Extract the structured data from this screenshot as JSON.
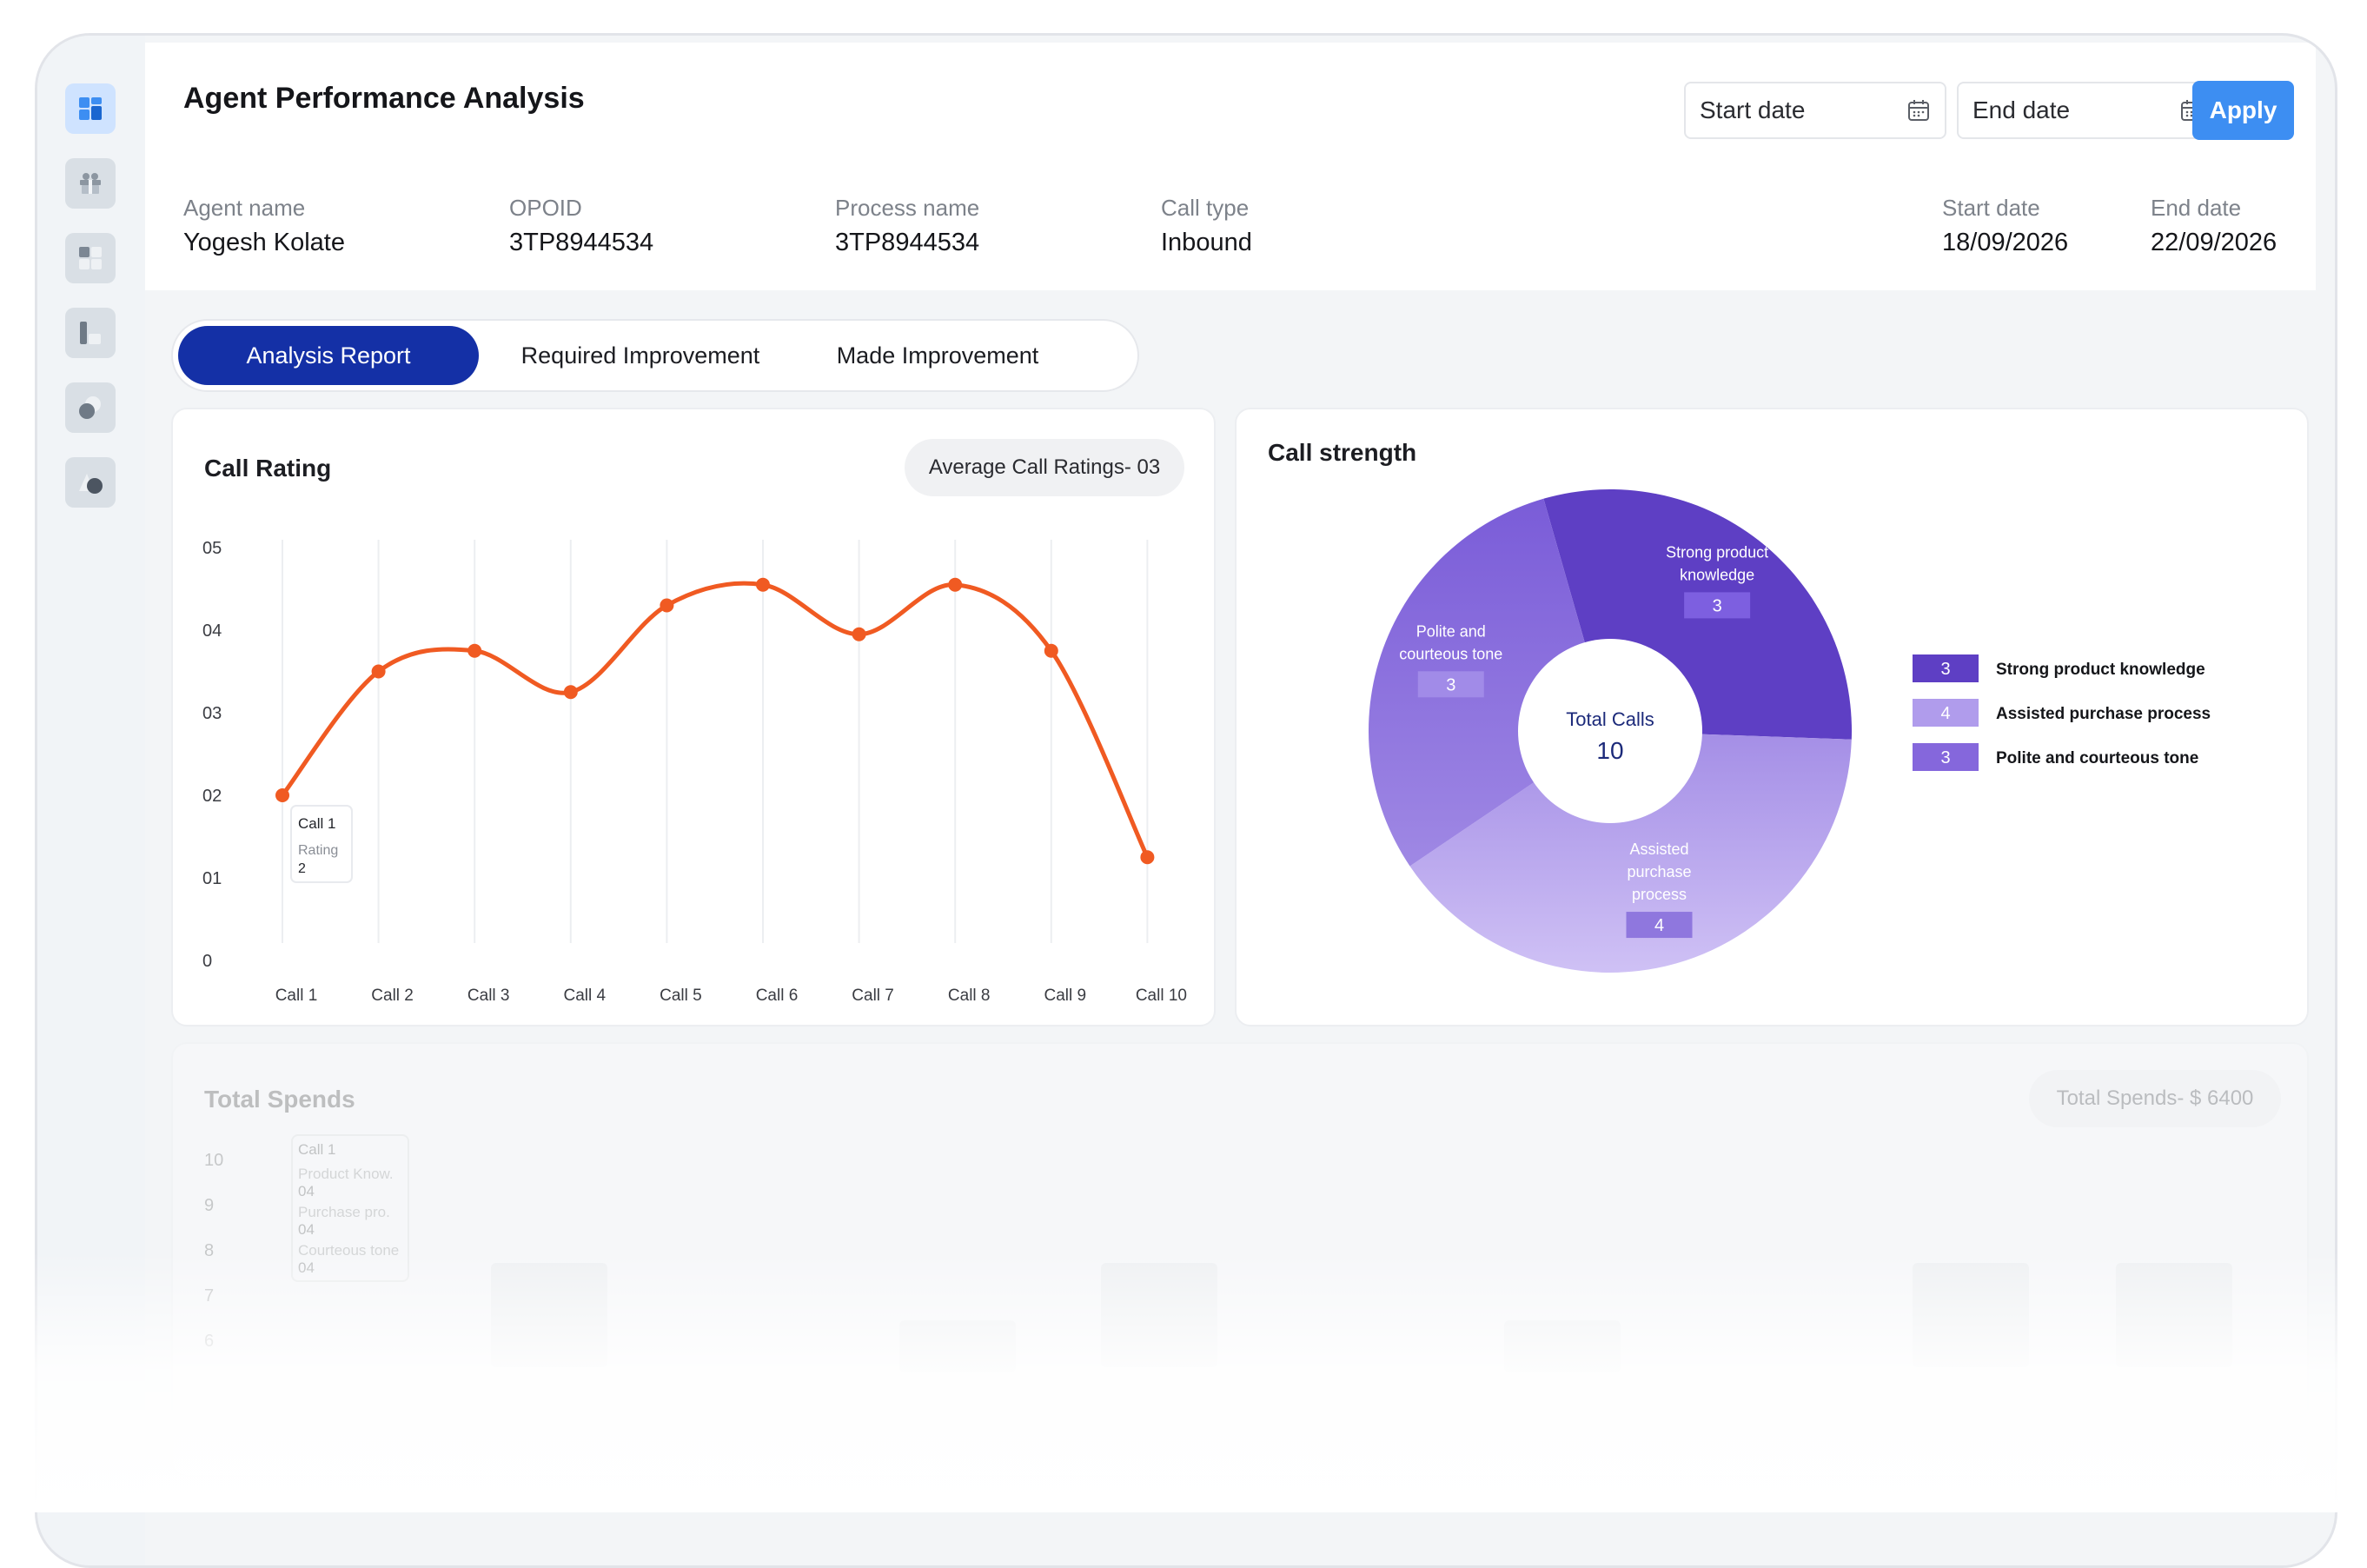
{
  "header": {
    "title": "Agent Performance Analysis",
    "start_date_placeholder": "Start date",
    "end_date_placeholder": "End date",
    "apply_label": "Apply",
    "info": [
      {
        "label": "Agent name",
        "value": "Yogesh Kolate"
      },
      {
        "label": "OPOID",
        "value": "3TP8944534"
      },
      {
        "label": "Process name",
        "value": "3TP8944534"
      },
      {
        "label": "Call type",
        "value": "Inbound"
      },
      {
        "label": "Start date",
        "value": "18/09/2026"
      },
      {
        "label": "End date",
        "value": "22/09/2026"
      }
    ]
  },
  "sidebar": {
    "icons": [
      "dashboard-icon",
      "gift-icon",
      "apps-grid-icon",
      "reports-icon",
      "circles-icon",
      "shapes-icon"
    ],
    "active_index": 0
  },
  "tabs": [
    {
      "label": "Analysis Report",
      "active": true
    },
    {
      "label": "Required Improvement",
      "active": false
    },
    {
      "label": "Made Improvement",
      "active": false
    }
  ],
  "call_rating": {
    "title": "Call Rating",
    "pill": "Average Call Ratings- 03",
    "tooltip": {
      "title": "Call 1",
      "label": "Rating",
      "value": "2"
    }
  },
  "call_strength": {
    "title": "Call strength",
    "center_label": "Total Calls",
    "center_value": "10"
  },
  "total_spends": {
    "title": "Total Spends",
    "pill": "Total Spends- $ 6400",
    "y_ticks": [
      "10",
      "9",
      "8",
      "7",
      "6"
    ],
    "tooltip": {
      "title": "Call 1",
      "rows": [
        {
          "label": "Product Know.",
          "value": "04"
        },
        {
          "label": "Purchase pro.",
          "value": "04"
        },
        {
          "label": "Courteous tone",
          "value": "04"
        }
      ]
    }
  },
  "colors": {
    "accent": "#1430a6",
    "apply": "#3d8ef2",
    "line": "#f05a22",
    "slice_strong": "#5e3fc4",
    "slice_assisted": "#b4a1ec",
    "slice_polite": "#8567dc"
  },
  "chart_data": [
    {
      "type": "line",
      "title": "Call Rating",
      "categories": [
        "Call 1",
        "Call 2",
        "Call 3",
        "Call 4",
        "Call 5",
        "Call 6",
        "Call 7",
        "Call 8",
        "Call 9",
        "Call 10"
      ],
      "y_tick_labels": [
        "0",
        "01",
        "02",
        "03",
        "04",
        "05"
      ],
      "values": [
        2,
        3.5,
        3.75,
        3.25,
        4.3,
        4.55,
        3.95,
        4.55,
        3.75,
        1.25
      ],
      "ylim": [
        0,
        5
      ],
      "grid": "vertical"
    },
    {
      "type": "pie",
      "title": "Call strength",
      "variant": "donut",
      "slices": [
        {
          "label": "Strong product knowledge",
          "chart_label": "Strong product knowledge",
          "value": 3
        },
        {
          "label": "Assisted purchase process",
          "chart_label": "Assisted purchase process",
          "value": 4
        },
        {
          "label": "Polite and courteous tone",
          "chart_label": "Polite and courteous tone",
          "value": 3
        }
      ],
      "legend_position": "right"
    }
  ]
}
